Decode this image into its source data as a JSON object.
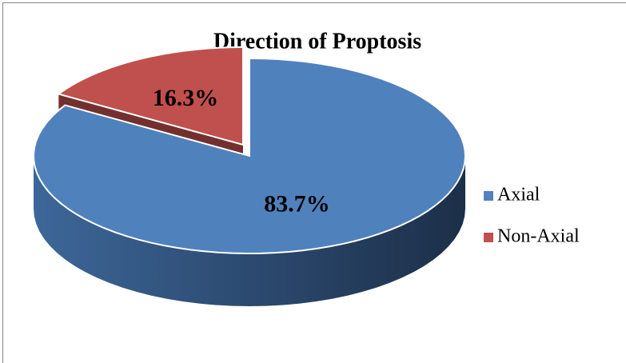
{
  "chart_data": {
    "type": "pie3d",
    "title": "Direction of Proptosis",
    "categories": [
      "Axial",
      "Non-Axial"
    ],
    "values": [
      83.7,
      16.3
    ],
    "value_labels": [
      "83.7%",
      "16.3%"
    ],
    "colors": [
      "#4f81bd",
      "#c0504d"
    ],
    "legend": "right",
    "exploded": [
      false,
      true
    ]
  }
}
